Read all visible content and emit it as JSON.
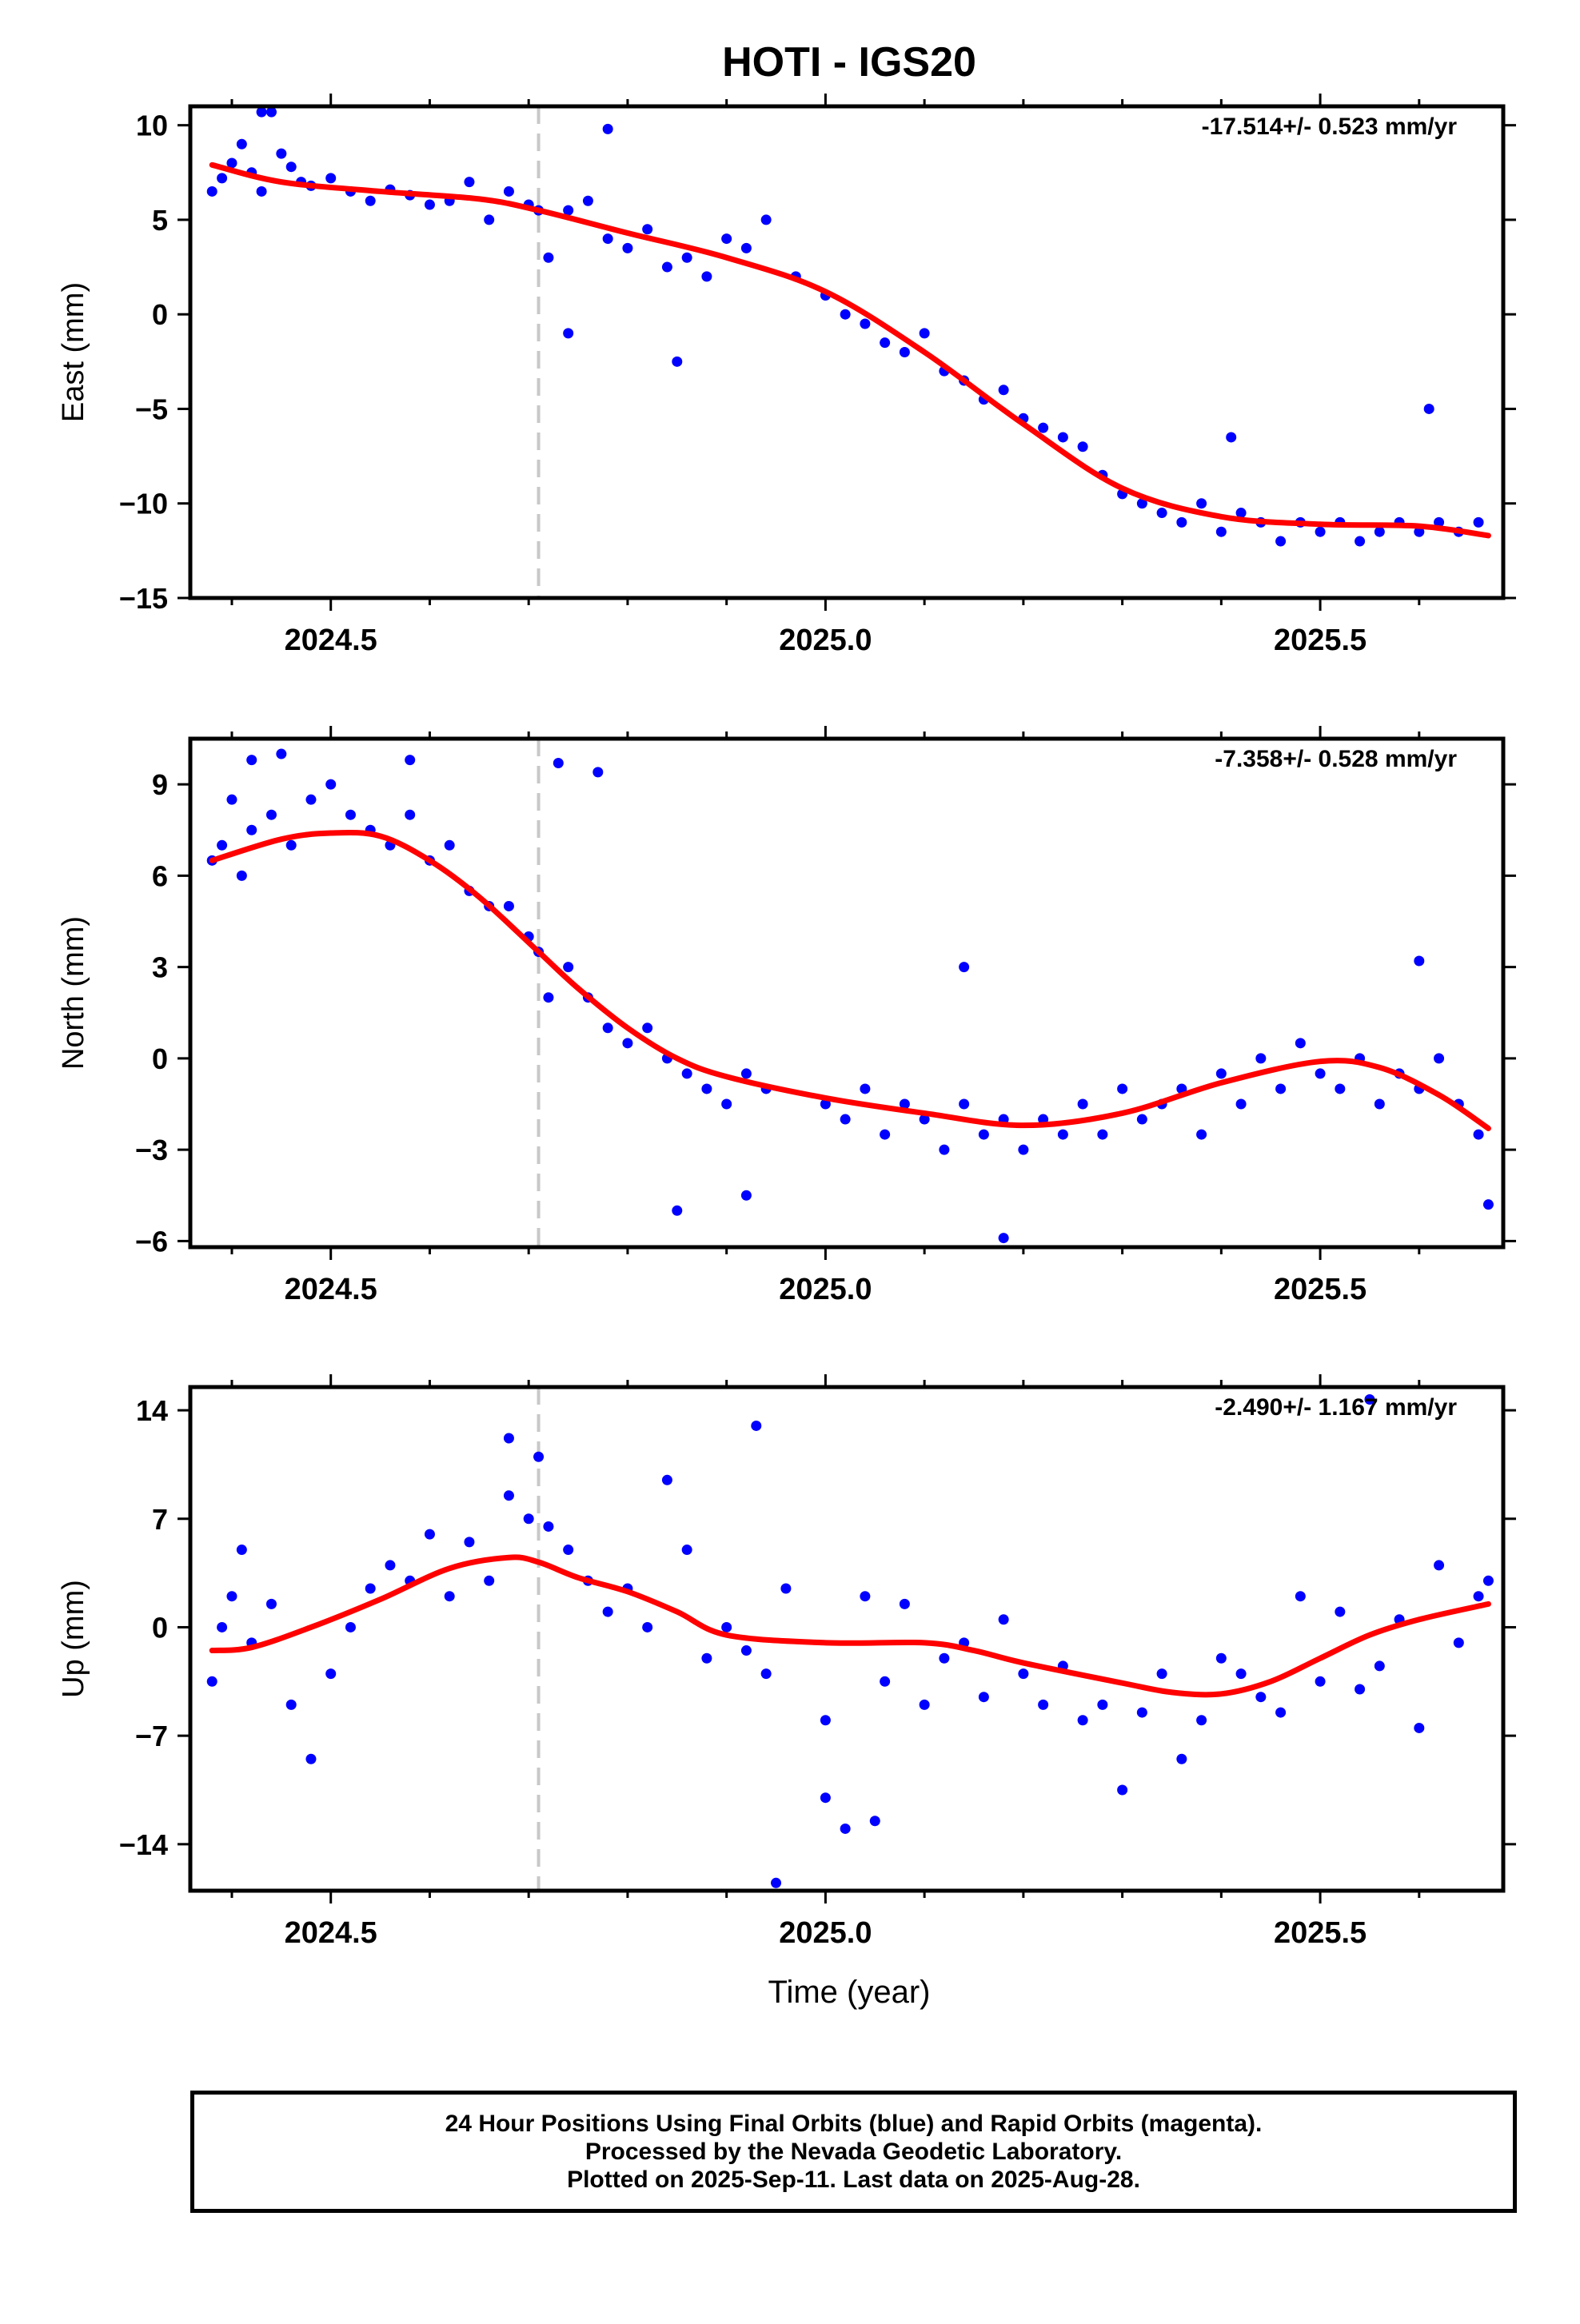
{
  "title": "HOTI - IGS20",
  "xlabel": "Time (year)",
  "footer": {
    "line1": "24 Hour Positions Using Final Orbits (blue) and Rapid Orbits (magenta).",
    "line2": "Processed by the Nevada Geodetic Laboratory.",
    "line3": "Plotted on 2025-Sep-11. Last data on 2025-Aug-28."
  },
  "colors": {
    "points": "#0000ff",
    "fit": "#ff0000",
    "marker_line": "#c8c8c8",
    "frame": "#000000"
  },
  "chart_data": [
    {
      "type": "scatter",
      "panel": "east",
      "ylabel": "East (mm)",
      "rate_label": "-17.514+/- 0.523 mm/yr",
      "xlim": [
        2024.358,
        2025.685
      ],
      "ylim": [
        -15,
        11
      ],
      "xticks": [
        2024.5,
        2025.0,
        2025.5
      ],
      "xtick_labels": [
        "2024.5",
        "2025.0",
        "2025.5"
      ],
      "yticks": [
        -15,
        -10,
        -5,
        0,
        5,
        10
      ],
      "ytick_labels": [
        "−15",
        "−10",
        "−5",
        "0",
        "5",
        "10"
      ],
      "equipment_change_x": 2024.71,
      "fit_curve": {
        "x": [
          2024.38,
          2024.45,
          2024.55,
          2024.65,
          2024.71,
          2024.8,
          2024.9,
          2025.0,
          2025.1,
          2025.2,
          2025.3,
          2025.4,
          2025.5,
          2025.6,
          2025.67
        ],
        "y": [
          7.9,
          7.0,
          6.5,
          6.1,
          5.5,
          4.3,
          3.0,
          1.2,
          -2.0,
          -5.8,
          -9.2,
          -10.7,
          -11.1,
          -11.2,
          -11.7
        ]
      },
      "series": [
        {
          "x": [
            2024.38,
            2024.39,
            2024.4,
            2024.41,
            2024.42,
            2024.43,
            2024.44,
            2024.45,
            2024.46,
            2024.47,
            2024.48,
            2024.5,
            2024.52,
            2024.54,
            2024.56,
            2024.58,
            2024.6,
            2024.62,
            2024.64,
            2024.66,
            2024.68,
            2024.7,
            2024.71,
            2024.72,
            2024.74,
            2024.76,
            2024.78,
            2024.8,
            2024.82,
            2024.84,
            2024.86,
            2024.88,
            2024.9,
            2024.92,
            2024.94,
            2024.97,
            2025.0,
            2025.02,
            2025.04,
            2025.06,
            2025.08,
            2025.1,
            2025.12,
            2025.14,
            2025.16,
            2025.18,
            2025.2,
            2025.22,
            2025.24,
            2025.26,
            2025.28,
            2025.3,
            2025.32,
            2025.34,
            2025.36,
            2025.38,
            2025.4,
            2025.42,
            2025.44,
            2025.46,
            2025.48,
            2025.5,
            2025.52,
            2025.54,
            2025.56,
            2025.58,
            2025.6,
            2025.62,
            2025.64,
            2025.66,
            2025.41,
            2025.61,
            2024.74,
            2024.85,
            2024.43,
            2024.78
          ],
          "y": [
            6.5,
            7.2,
            8.0,
            9.0,
            7.5,
            6.5,
            10.7,
            8.5,
            7.8,
            7.0,
            6.8,
            7.2,
            6.5,
            6.0,
            6.6,
            6.3,
            5.8,
            6.0,
            7.0,
            5.0,
            6.5,
            5.8,
            5.5,
            3.0,
            5.5,
            6.0,
            4.0,
            3.5,
            4.5,
            2.5,
            3.0,
            2.0,
            4.0,
            3.5,
            5.0,
            2.0,
            1.0,
            0.0,
            -0.5,
            -1.5,
            -2.0,
            -1.0,
            -3.0,
            -3.5,
            -4.5,
            -4.0,
            -5.5,
            -6.0,
            -6.5,
            -7.0,
            -8.5,
            -9.5,
            -10.0,
            -10.5,
            -11.0,
            -10.0,
            -11.5,
            -10.5,
            -11.0,
            -12.0,
            -11.0,
            -11.5,
            -11.0,
            -12.0,
            -11.5,
            -11.0,
            -11.5,
            -11.0,
            -11.5,
            -11.0,
            -6.5,
            -5.0,
            -1.0,
            -2.5,
            10.7,
            9.8
          ]
        }
      ]
    },
    {
      "type": "scatter",
      "panel": "north",
      "ylabel": "North (mm)",
      "rate_label": "-7.358+/- 0.528 mm/yr",
      "xlim": [
        2024.358,
        2025.685
      ],
      "ylim": [
        -6.2,
        10.5
      ],
      "xticks": [
        2024.5,
        2025.0,
        2025.5
      ],
      "xtick_labels": [
        "2024.5",
        "2025.0",
        "2025.5"
      ],
      "yticks": [
        -6,
        -3,
        0,
        3,
        6,
        9
      ],
      "ytick_labels": [
        "−6",
        "−3",
        "0",
        "3",
        "6",
        "9"
      ],
      "equipment_change_x": 2024.71,
      "fit_curve": {
        "x": [
          2024.38,
          2024.45,
          2024.5,
          2024.55,
          2024.6,
          2024.65,
          2024.71,
          2024.75,
          2024.8,
          2024.85,
          2024.9,
          2025.0,
          2025.1,
          2025.2,
          2025.3,
          2025.4,
          2025.5,
          2025.56,
          2025.62,
          2025.67
        ],
        "y": [
          6.5,
          7.2,
          7.4,
          7.3,
          6.5,
          5.3,
          3.5,
          2.3,
          1.0,
          0.0,
          -0.6,
          -1.3,
          -1.8,
          -2.2,
          -1.8,
          -0.8,
          -0.1,
          -0.3,
          -1.2,
          -2.3
        ]
      },
      "series": [
        {
          "x": [
            2024.38,
            2024.39,
            2024.4,
            2024.41,
            2024.42,
            2024.44,
            2024.46,
            2024.48,
            2024.5,
            2024.52,
            2024.54,
            2024.56,
            2024.58,
            2024.6,
            2024.62,
            2024.64,
            2024.66,
            2024.68,
            2024.7,
            2024.71,
            2024.72,
            2024.74,
            2024.76,
            2024.78,
            2024.8,
            2024.82,
            2024.84,
            2024.86,
            2024.88,
            2024.9,
            2024.92,
            2024.94,
            2025.0,
            2025.02,
            2025.04,
            2025.06,
            2025.08,
            2025.1,
            2025.12,
            2025.14,
            2025.16,
            2025.18,
            2025.2,
            2025.22,
            2025.24,
            2025.26,
            2025.28,
            2025.3,
            2025.32,
            2025.34,
            2025.36,
            2025.38,
            2025.4,
            2025.42,
            2025.44,
            2025.46,
            2025.48,
            2025.5,
            2025.52,
            2025.54,
            2025.56,
            2025.58,
            2025.6,
            2025.62,
            2025.64,
            2025.66,
            2025.67,
            2024.42,
            2024.45,
            2024.58,
            2024.73,
            2024.77,
            2024.85,
            2024.92,
            2025.14,
            2025.18,
            2025.6
          ],
          "y": [
            6.5,
            7.0,
            8.5,
            6.0,
            7.5,
            8.0,
            7.0,
            8.5,
            9.0,
            8.0,
            7.5,
            7.0,
            8.0,
            6.5,
            7.0,
            5.5,
            5.0,
            5.0,
            4.0,
            3.5,
            2.0,
            3.0,
            2.0,
            1.0,
            0.5,
            1.0,
            0.0,
            -0.5,
            -1.0,
            -1.5,
            -0.5,
            -1.0,
            -1.5,
            -2.0,
            -1.0,
            -2.5,
            -1.5,
            -2.0,
            -3.0,
            -1.5,
            -2.5,
            -2.0,
            -3.0,
            -2.0,
            -2.5,
            -1.5,
            -2.5,
            -1.0,
            -2.0,
            -1.5,
            -1.0,
            -2.5,
            -0.5,
            -1.5,
            0.0,
            -1.0,
            0.5,
            -0.5,
            -1.0,
            0.0,
            -1.5,
            -0.5,
            -1.0,
            0.0,
            -1.5,
            -2.5,
            -4.8,
            9.8,
            10.0,
            9.8,
            9.7,
            9.4,
            -5.0,
            -4.5,
            3.0,
            -5.9,
            3.2
          ]
        }
      ]
    },
    {
      "type": "scatter",
      "panel": "up",
      "ylabel": "Up (mm)",
      "rate_label": "-2.490+/- 1.167 mm/yr",
      "xlim": [
        2024.358,
        2025.685
      ],
      "ylim": [
        -17,
        15.5
      ],
      "xticks": [
        2024.5,
        2025.0,
        2025.5
      ],
      "xtick_labels": [
        "2024.5",
        "2025.0",
        "2025.5"
      ],
      "yticks": [
        -14,
        -7,
        0,
        7,
        14
      ],
      "ytick_labels": [
        "−14",
        "−7",
        "0",
        "7",
        "14"
      ],
      "equipment_change_x": 2024.71,
      "fit_curve": {
        "x": [
          2024.38,
          2024.42,
          2024.48,
          2024.55,
          2024.62,
          2024.68,
          2024.71,
          2024.75,
          2024.8,
          2024.85,
          2024.9,
          2025.0,
          2025.1,
          2025.15,
          2025.2,
          2025.3,
          2025.35,
          2025.4,
          2025.45,
          2025.5,
          2025.55,
          2025.6,
          2025.67
        ],
        "y": [
          -1.5,
          -1.3,
          0.0,
          1.8,
          3.8,
          4.5,
          4.2,
          3.2,
          2.3,
          1.0,
          -0.5,
          -1.0,
          -1.0,
          -1.5,
          -2.3,
          -3.6,
          -4.2,
          -4.3,
          -3.5,
          -2.0,
          -0.5,
          0.5,
          1.5
        ]
      },
      "series": [
        {
          "x": [
            2024.38,
            2024.39,
            2024.4,
            2024.41,
            2024.42,
            2024.44,
            2024.46,
            2024.48,
            2024.5,
            2024.52,
            2024.54,
            2024.56,
            2024.58,
            2024.6,
            2024.62,
            2024.64,
            2024.66,
            2024.68,
            2024.7,
            2024.71,
            2024.72,
            2024.74,
            2024.76,
            2024.78,
            2024.8,
            2024.82,
            2024.84,
            2024.86,
            2024.88,
            2024.9,
            2024.92,
            2024.94,
            2024.96,
            2025.0,
            2025.02,
            2025.04,
            2025.06,
            2025.08,
            2025.1,
            2025.12,
            2025.14,
            2025.16,
            2025.18,
            2025.2,
            2025.22,
            2025.24,
            2025.26,
            2025.28,
            2025.3,
            2025.32,
            2025.34,
            2025.36,
            2025.38,
            2025.4,
            2025.42,
            2025.44,
            2025.46,
            2025.48,
            2025.5,
            2025.52,
            2025.54,
            2025.56,
            2025.58,
            2025.6,
            2025.62,
            2025.64,
            2025.66,
            2025.67,
            2024.68,
            2024.93,
            2024.95,
            2025.0,
            2025.05,
            2025.55
          ],
          "y": [
            -3.5,
            0.0,
            2.0,
            5.0,
            -1.0,
            1.5,
            -5.0,
            -8.5,
            -3.0,
            0.0,
            2.5,
            4.0,
            3.0,
            6.0,
            2.0,
            5.5,
            3.0,
            8.5,
            7.0,
            11.0,
            6.5,
            5.0,
            3.0,
            1.0,
            2.5,
            0.0,
            9.5,
            5.0,
            -2.0,
            0.0,
            -1.5,
            -3.0,
            2.5,
            -6.0,
            -13.0,
            2.0,
            -3.5,
            1.5,
            -5.0,
            -2.0,
            -1.0,
            -4.5,
            0.5,
            -3.0,
            -5.0,
            -2.5,
            -6.0,
            -5.0,
            -10.5,
            -5.5,
            -3.0,
            -8.5,
            -6.0,
            -2.0,
            -3.0,
            -4.5,
            -5.5,
            2.0,
            -3.5,
            1.0,
            -4.0,
            -2.5,
            0.5,
            -6.5,
            4.0,
            -1.0,
            2.0,
            3.0,
            12.2,
            13.0,
            -16.5,
            -11.0,
            -12.5,
            14.7
          ]
        }
      ]
    }
  ]
}
